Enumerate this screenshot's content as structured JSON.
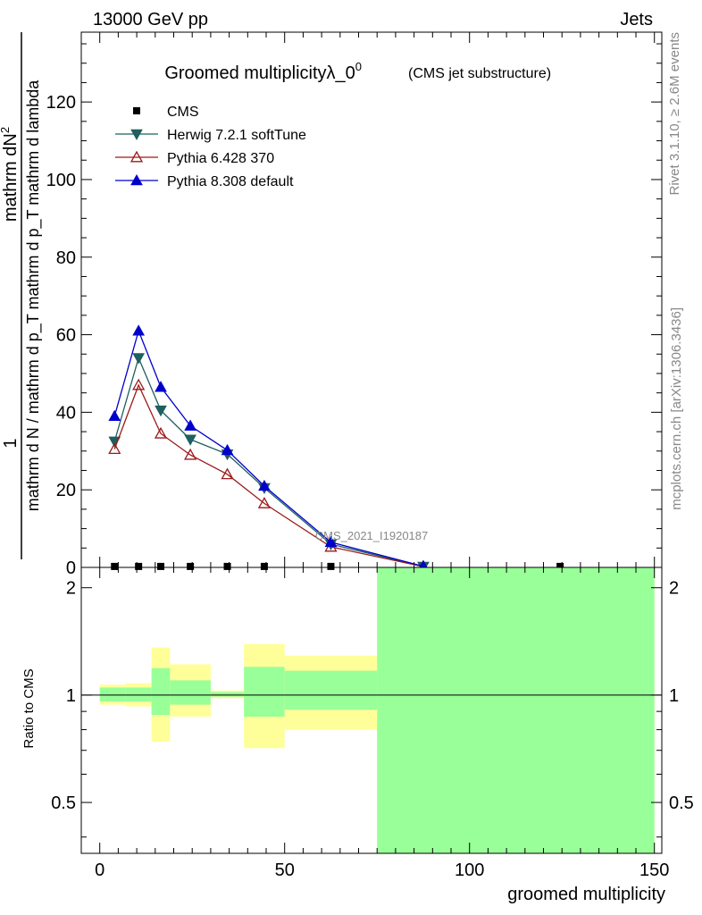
{
  "header": {
    "left": "13000 GeV pp",
    "right": "Jets"
  },
  "side": {
    "rivet": "Rivet 3.1.10, ≥ 2.6M events",
    "mcplots": "mcplots.cern.ch [arXiv:1306.3436]"
  },
  "chart_data": {
    "type": "line",
    "title": "Groomed multiplicityλ_0⁰",
    "title_main": "Groomed multiplicityλ_0",
    "title_sup": "0",
    "subtitle": "(CMS jet substructure)",
    "ylabel": {
      "numerator": "1",
      "numerator2": "mathrm dN",
      "numerator2_sup": "2",
      "denominator": "mathrm d N / mathrm d p_T mathrm d p_T mathrm d lambda"
    },
    "watermark": "CMS_2021_I1920187",
    "xlabel": "groomed multiplicity",
    "ratio_ylabel": "Ratio to CMS",
    "xlim": [
      -5,
      152
    ],
    "ylim": [
      0,
      138
    ],
    "ratio_ylim": [
      0.36,
      2.28
    ],
    "xticks": [
      0,
      50,
      100,
      150
    ],
    "yticks": [
      0,
      20,
      40,
      60,
      80,
      100,
      120
    ],
    "ratio_yticks": [
      0.5,
      1,
      2
    ],
    "legend_position": "top-left",
    "x": [
      4,
      10.5,
      16.5,
      24.5,
      34.5,
      44.5,
      62.5,
      87.5,
      124.5
    ],
    "series": [
      {
        "name": "CMS",
        "color": "#000000",
        "marker": "square",
        "values": [
          0.25,
          0.25,
          0.25,
          0.25,
          0.25,
          0.25,
          0.25,
          0.25,
          0.25
        ]
      },
      {
        "name": "Herwig 7.2.1 softTune",
        "color": "#1f5f5f",
        "marker": "triangle-down",
        "x": [
          4,
          10.5,
          16.5,
          24.5,
          34.5,
          44.5,
          62.5,
          87.5
        ],
        "values": [
          32.5,
          54,
          40.5,
          33,
          29.2,
          20.5,
          6.0,
          0.2
        ]
      },
      {
        "name": "Pythia 6.428 370",
        "color": "#9b1b1b",
        "marker": "triangle-up-open",
        "x": [
          4,
          10.5,
          16.5,
          24.5,
          34.5,
          44.5,
          62.5,
          87.5
        ],
        "values": [
          30.5,
          47,
          34.5,
          29,
          24,
          16.5,
          5.3,
          0.2
        ]
      },
      {
        "name": "Pythia 8.308 default",
        "color": "#0000cc",
        "marker": "triangle-up",
        "x": [
          4,
          10.5,
          16.5,
          24.5,
          34.5,
          44.5,
          62.5,
          87.5
        ],
        "values": [
          39,
          61,
          46.5,
          36.5,
          30.2,
          21,
          6.5,
          0.3
        ]
      }
    ],
    "ratio_bands": {
      "bins": [
        [
          0,
          7
        ],
        [
          7,
          14
        ],
        [
          14,
          19
        ],
        [
          19,
          30
        ],
        [
          30,
          39
        ],
        [
          39,
          50
        ],
        [
          50,
          75
        ],
        [
          75,
          150
        ]
      ],
      "stat": [
        [
          0.96,
          1.05
        ],
        [
          0.96,
          1.05
        ],
        [
          0.88,
          1.19
        ],
        [
          0.94,
          1.1
        ],
        [
          0.99,
          1.02
        ],
        [
          0.87,
          1.2
        ],
        [
          0.91,
          1.17
        ],
        [
          0.36,
          2.28
        ]
      ],
      "total": [
        [
          0.94,
          1.07
        ],
        [
          0.93,
          1.08
        ],
        [
          0.74,
          1.36
        ],
        [
          0.87,
          1.22
        ],
        [
          0.98,
          1.03
        ],
        [
          0.71,
          1.39
        ],
        [
          0.8,
          1.29
        ],
        [
          0.36,
          2.28
        ]
      ],
      "stat_color": "#99ff99",
      "total_color": "#ffff99"
    }
  }
}
